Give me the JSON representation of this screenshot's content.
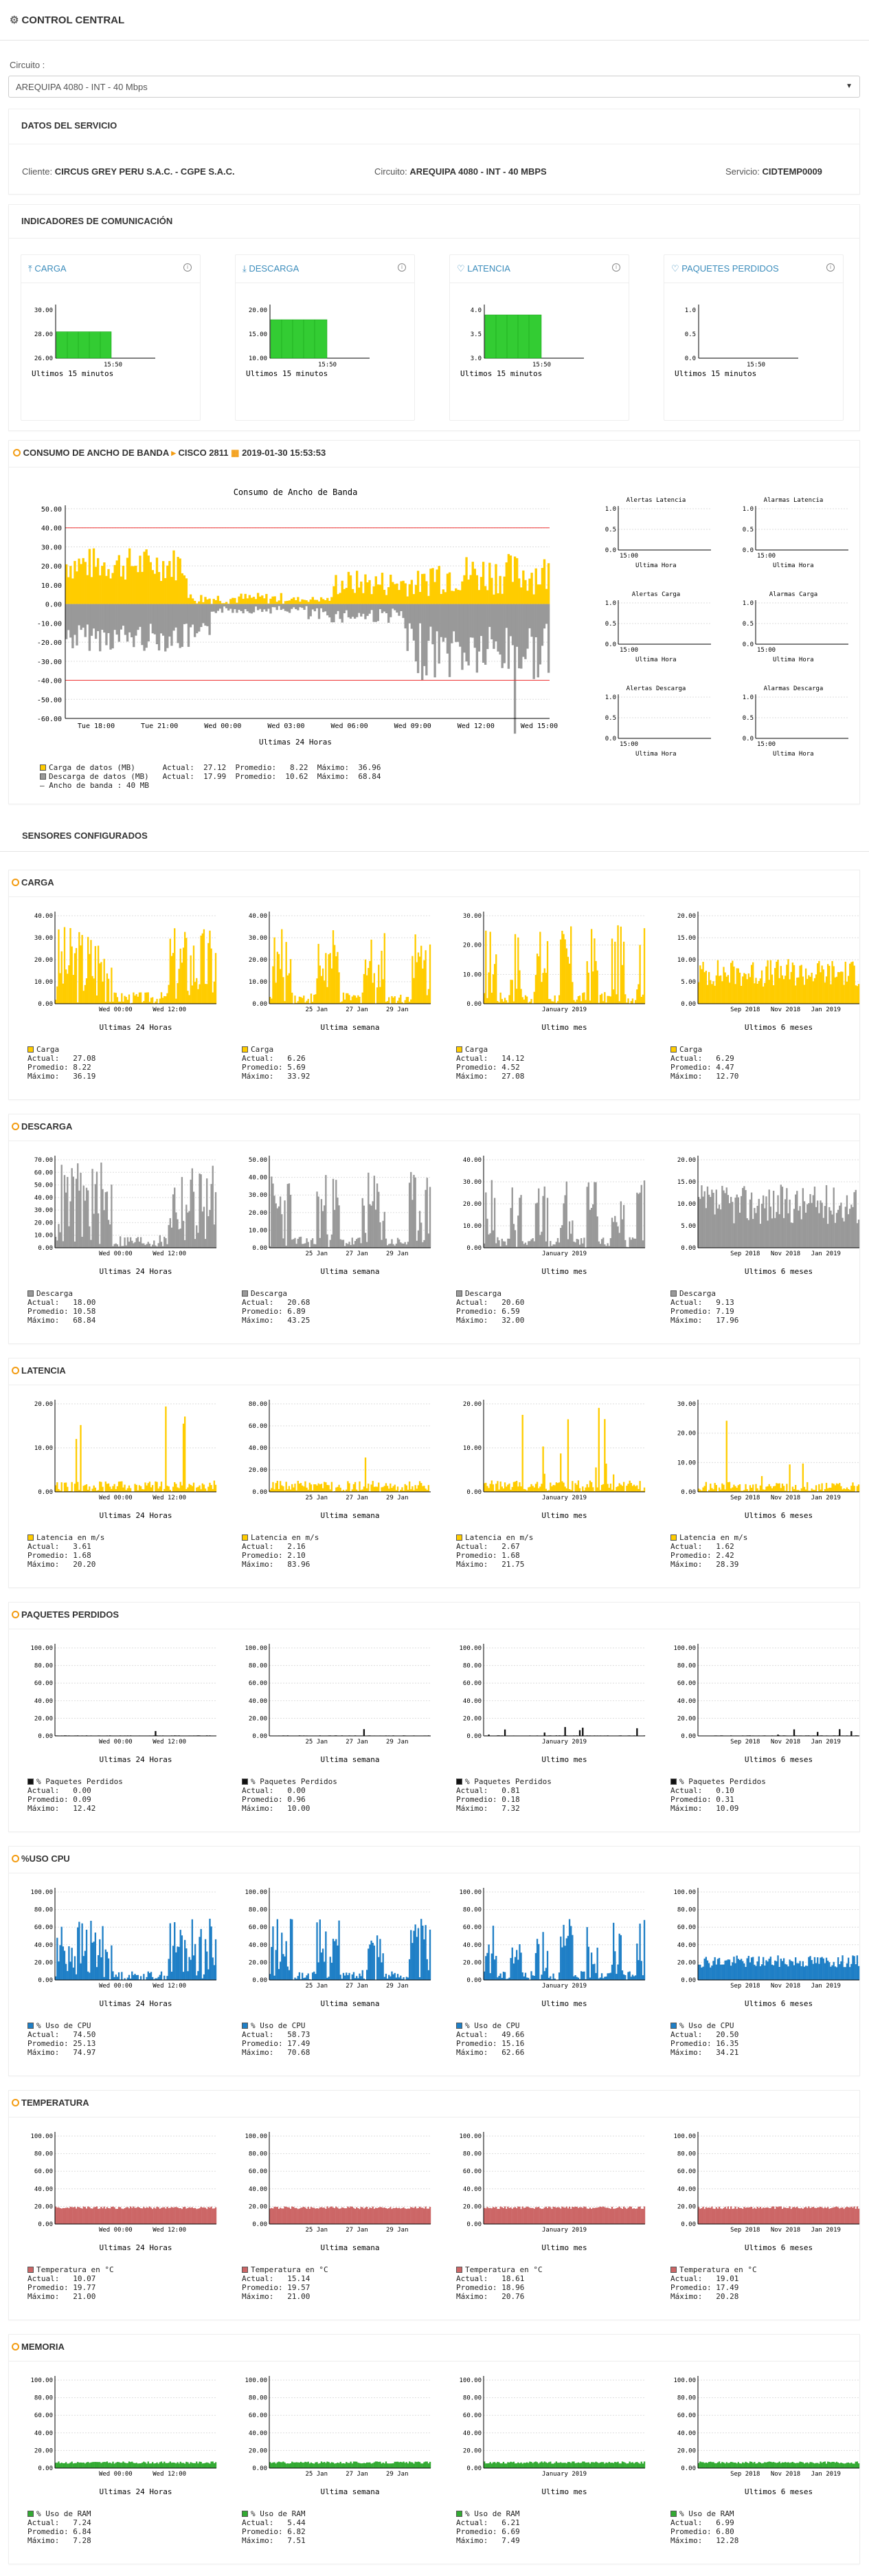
{
  "header": {
    "title": "CONTROL CENTRAL"
  },
  "circuit": {
    "label": "Circuito :",
    "selected": "AREQUIPA 4080 - INT - 40 Mbps"
  },
  "service": {
    "title": "DATOS DEL SERVICIO",
    "client_label": "Cliente:",
    "client": "CIRCUS GREY PERU S.A.C. - CGPE S.A.C.",
    "circuit_label": "Circuito:",
    "circuit": "AREQUIPA 4080 - INT - 40 MBPS",
    "service_label": "Servicio:",
    "service": "CIDTEMP0009"
  },
  "indicators": {
    "title": "INDICADORES DE COMUNICACIÓN",
    "caption": "Ultimos 15 minutos",
    "xtick": "15:50",
    "items": [
      {
        "label": "CARGA",
        "icon": "upload-icon",
        "ticks": [
          "30.00",
          "28.00",
          "26.00"
        ],
        "fill": 0.55,
        "color": "#33cc33"
      },
      {
        "label": "DESCARGA",
        "icon": "download-icon",
        "ticks": [
          "20.00",
          "15.00",
          "10.00"
        ],
        "fill": 0.8,
        "color": "#33cc33"
      },
      {
        "label": "LATENCIA",
        "icon": "heartbeat-icon",
        "ticks": [
          "4.0",
          "3.5",
          "3.0"
        ],
        "fill": 0.9,
        "color": "#33cc33"
      },
      {
        "label": "PAQUETES PERDIDOS",
        "icon": "heartbeat-icon",
        "ticks": [
          "1.0",
          "0.5",
          "0.0"
        ],
        "fill": 0,
        "color": "#33cc33"
      }
    ]
  },
  "bandwidth": {
    "title": "CONSUMO DE ANCHO DE BANDA",
    "device": "CISCO 2811",
    "date": "2019-01-30 15:53:53",
    "chart_title": "Consumo de Ancho de Banda",
    "xlabel": "Ultimas 24 Horas",
    "yticks": [
      "50.00",
      "40.00",
      "30.00",
      "20.00",
      "10.00",
      "0.00",
      "-10.00",
      "-20.00",
      "-30.00",
      "-40.00",
      "-50.00",
      "-60.00"
    ],
    "xticks": [
      "Tue 18:00",
      "Tue 21:00",
      "Wed 00:00",
      "Wed 03:00",
      "Wed 06:00",
      "Wed 09:00",
      "Wed 12:00",
      "Wed 15:00"
    ],
    "legend": [
      {
        "name": "Carga de datos (MB)",
        "color": "#ffcc00",
        "actual": "27.12",
        "promedio": "8.22",
        "maximo": "36.96"
      },
      {
        "name": "Descarga de datos (MB)",
        "color": "#999999",
        "actual": "17.99",
        "promedio": "10.62",
        "maximo": "68.84"
      }
    ],
    "bw_legend": "Ancho de banda : 40 MB",
    "actual_lbl": "Actual:",
    "promedio_lbl": "Promedio:",
    "maximo_lbl": "Máximo:"
  },
  "alarms": [
    {
      "title": "Alertas Latencia"
    },
    {
      "title": "Alarmas Latencia"
    },
    {
      "title": "Alertas Carga"
    },
    {
      "title": "Alarmas Carga"
    },
    {
      "title": "Alertas Descarga"
    },
    {
      "title": "Alarmas Descarga"
    }
  ],
  "alarm_axis": {
    "yticks": [
      "1.0",
      "0.5",
      "0.0"
    ],
    "xtick": "15:00",
    "xlabel": "Ultima Hora"
  },
  "sensors_title": "SENSORES CONFIGURADOS",
  "periods": [
    {
      "caption": "Ultimas 24 Horas",
      "xticks": [
        "Wed 00:00",
        "Wed 12:00"
      ]
    },
    {
      "caption": "Ultima semana",
      "xticks": [
        "25 Jan",
        "27 Jan",
        "29 Jan"
      ]
    },
    {
      "caption": "Ultimo mes",
      "xticks": [
        "January 2019"
      ]
    },
    {
      "caption": "Ultimos 6 meses",
      "xticks": [
        "Sep 2018",
        "Nov 2018",
        "Jan 2019"
      ]
    }
  ],
  "sensors": [
    {
      "title": "CARGA",
      "color": "#ffcc00",
      "series": "Carga",
      "yticks": [
        [
          "40.00",
          "30.00",
          "20.00",
          "10.00",
          "0.00"
        ],
        [
          "40.00",
          "30.00",
          "20.00",
          "10.00",
          "0.00"
        ],
        [
          "30.00",
          "20.00",
          "10.00",
          "0.00"
        ],
        [
          "20.00",
          "15.00",
          "10.00",
          "5.00",
          "0.00"
        ]
      ],
      "stats": [
        [
          "27.08",
          "8.22",
          "36.19"
        ],
        [
          "6.26",
          "5.69",
          "33.92"
        ],
        [
          "14.12",
          "4.52",
          "27.08"
        ],
        [
          "6.29",
          "4.47",
          "12.70"
        ]
      ]
    },
    {
      "title": "DESCARGA",
      "color": "#999999",
      "series": "Descarga",
      "yticks": [
        [
          "70.00",
          "60.00",
          "50.00",
          "40.00",
          "30.00",
          "20.00",
          "10.00",
          "0.00"
        ],
        [
          "50.00",
          "40.00",
          "30.00",
          "20.00",
          "10.00",
          "0.00"
        ],
        [
          "40.00",
          "30.00",
          "20.00",
          "10.00",
          "0.00"
        ],
        [
          "20.00",
          "15.00",
          "10.00",
          "5.00",
          "0.00"
        ]
      ],
      "stats": [
        [
          "18.00",
          "10.58",
          "68.84"
        ],
        [
          "20.68",
          "6.89",
          "43.25"
        ],
        [
          "20.60",
          "6.59",
          "32.00"
        ],
        [
          "9.13",
          "7.19",
          "17.96"
        ]
      ]
    },
    {
      "title": "LATENCIA",
      "color": "#ffcc00",
      "series": "Latencia en m/s",
      "yticks": [
        [
          "20.00",
          "10.00",
          "0.00"
        ],
        [
          "80.00",
          "60.00",
          "40.00",
          "20.00",
          "0.00"
        ],
        [
          "20.00",
          "10.00",
          "0.00"
        ],
        [
          "30.00",
          "20.00",
          "10.00",
          "0.00"
        ]
      ],
      "stats": [
        [
          "3.61",
          "1.68",
          "20.20"
        ],
        [
          "2.16",
          "2.10",
          "83.96"
        ],
        [
          "2.67",
          "1.68",
          "21.75"
        ],
        [
          "1.62",
          "2.42",
          "28.39"
        ]
      ]
    },
    {
      "title": "PAQUETES PERDIDOS",
      "color": "#111111",
      "series": "% Paquetes Perdidos",
      "yticks": [
        [
          "100.00",
          "80.00",
          "60.00",
          "40.00",
          "20.00",
          "0.00"
        ],
        [
          "100.00",
          "80.00",
          "60.00",
          "40.00",
          "20.00",
          "0.00"
        ],
        [
          "100.00",
          "80.00",
          "60.00",
          "40.00",
          "20.00",
          "0.00"
        ],
        [
          "100.00",
          "80.00",
          "60.00",
          "40.00",
          "20.00",
          "0.00"
        ]
      ],
      "stats": [
        [
          "0.00",
          "0.09",
          "12.42"
        ],
        [
          "0.00",
          "0.96",
          "10.00"
        ],
        [
          "0.81",
          "0.18",
          "7.32"
        ],
        [
          "0.10",
          "0.31",
          "10.09"
        ]
      ]
    },
    {
      "title": "%USO CPU",
      "color": "#1f7fc6",
      "series": "% Uso de CPU",
      "yticks": [
        [
          "100.00",
          "80.00",
          "60.00",
          "40.00",
          "20.00",
          "0.00"
        ],
        [
          "100.00",
          "80.00",
          "60.00",
          "40.00",
          "20.00",
          "0.00"
        ],
        [
          "100.00",
          "80.00",
          "60.00",
          "40.00",
          "20.00",
          "0.00"
        ],
        [
          "100.00",
          "80.00",
          "60.00",
          "40.00",
          "20.00",
          "0.00"
        ]
      ],
      "stats": [
        [
          "74.50",
          "25.13",
          "74.97"
        ],
        [
          "58.73",
          "17.49",
          "70.68"
        ],
        [
          "49.66",
          "15.16",
          "62.66"
        ],
        [
          "20.50",
          "16.35",
          "34.21"
        ]
      ]
    },
    {
      "title": "TEMPERATURA",
      "color": "#cc6666",
      "series": "Temperatura en °C",
      "yticks": [
        [
          "100.00",
          "80.00",
          "60.00",
          "40.00",
          "20.00",
          "0.00"
        ],
        [
          "100.00",
          "80.00",
          "60.00",
          "40.00",
          "20.00",
          "0.00"
        ],
        [
          "100.00",
          "80.00",
          "60.00",
          "40.00",
          "20.00",
          "0.00"
        ],
        [
          "100.00",
          "80.00",
          "60.00",
          "40.00",
          "20.00",
          "0.00"
        ]
      ],
      "stats": [
        [
          "10.07",
          "19.77",
          "21.00"
        ],
        [
          "15.14",
          "19.57",
          "21.00"
        ],
        [
          "18.61",
          "18.96",
          "20.76"
        ],
        [
          "19.01",
          "17.49",
          "20.28"
        ]
      ]
    },
    {
      "title": "MEMORIA",
      "color": "#33aa33",
      "series": "% Uso de RAM",
      "yticks": [
        [
          "100.00",
          "80.00",
          "60.00",
          "40.00",
          "20.00",
          "0.00"
        ],
        [
          "100.00",
          "80.00",
          "60.00",
          "40.00",
          "20.00",
          "0.00"
        ],
        [
          "100.00",
          "80.00",
          "60.00",
          "40.00",
          "20.00",
          "0.00"
        ],
        [
          "100.00",
          "80.00",
          "60.00",
          "40.00",
          "20.00",
          "0.00"
        ]
      ],
      "stats": [
        [
          "7.24",
          "6.84",
          "7.28"
        ],
        [
          "5.44",
          "6.82",
          "7.51"
        ],
        [
          "6.21",
          "6.69",
          "7.49"
        ],
        [
          "6.99",
          "6.80",
          "12.28"
        ]
      ]
    }
  ],
  "stat_labels": {
    "actual": "Actual:",
    "promedio": "Promedio:",
    "maximo": "Máximo:"
  }
}
